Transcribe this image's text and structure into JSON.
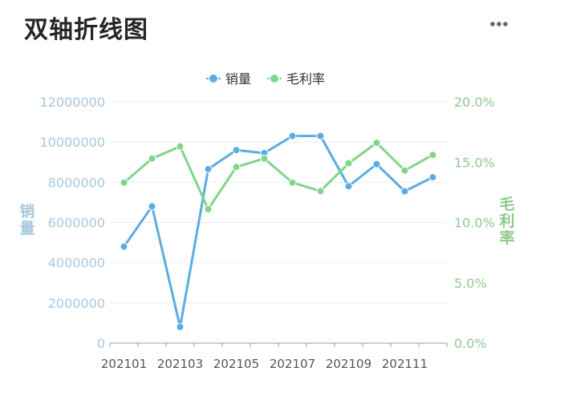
{
  "header": {
    "title": "双轴折线图",
    "more_icon": "more-horizontal-icon"
  },
  "colors": {
    "series_sales": "#5aade3",
    "series_margin": "#7fd68a",
    "left_axis_text": "#a8c8e0",
    "right_axis_text": "#8fc98f",
    "x_axis_text": "#555555",
    "grid": "#e8eef3"
  },
  "chart_data": {
    "type": "line",
    "title": "",
    "x": [
      "202101",
      "202102",
      "202103",
      "202104",
      "202105",
      "202106",
      "202107",
      "202108",
      "202109",
      "202110",
      "202111",
      "202112"
    ],
    "x_tick_labels": [
      "202101",
      "202103",
      "202105",
      "202107",
      "202109",
      "202111"
    ],
    "series": [
      {
        "name": "销量",
        "axis": "left",
        "values": [
          4800000,
          6800000,
          800000,
          8650000,
          9600000,
          9450000,
          10300000,
          10300000,
          7800000,
          8900000,
          7550000,
          8250000
        ]
      },
      {
        "name": "毛利率",
        "axis": "right",
        "values": [
          13.3,
          15.3,
          16.3,
          11.1,
          14.6,
          15.3,
          13.3,
          12.6,
          14.9,
          16.6,
          14.3,
          15.6
        ]
      }
    ],
    "y_left": {
      "label": "销量",
      "min": 0,
      "max": 12000000,
      "ticks": [
        "0",
        "2000000",
        "4000000",
        "6000000",
        "8000000",
        "10000000",
        "12000000"
      ]
    },
    "y_right": {
      "label": "毛利率",
      "min": 0,
      "max": 20,
      "ticks": [
        "0.0%",
        "5.0%",
        "10.0%",
        "15.0%",
        "20.0%"
      ]
    },
    "legend": {
      "position": "top-center"
    },
    "grid": true
  }
}
